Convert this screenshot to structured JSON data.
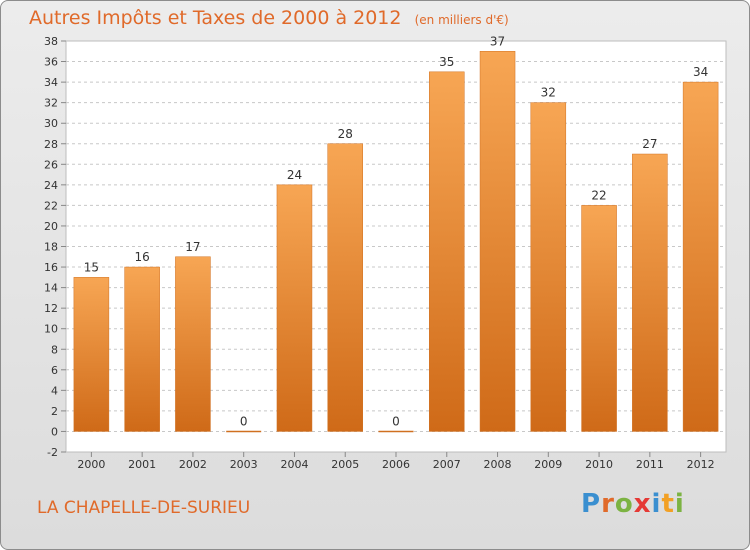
{
  "header": {
    "title": "Autres Impôts et Taxes de 2000 à 2012",
    "unit": "(en milliers d'€)"
  },
  "footer": {
    "commune": "LA CHAPELLE-DE-SURIEU",
    "brand_letters": [
      "P",
      "r",
      "o",
      "x",
      "i",
      "t",
      "i"
    ],
    "brand_colors": [
      "#3a8fd0",
      "#e06a2a",
      "#7cb342",
      "#e53935",
      "#3a8fd0",
      "#f2a024",
      "#7cb342"
    ]
  },
  "colors": {
    "bar_top": "#f7a654",
    "bar_bottom": "#cf6a18",
    "text": "#333333",
    "title": "#e06a2a"
  },
  "chart_data": {
    "type": "bar",
    "categories": [
      "2000",
      "2001",
      "2002",
      "2003",
      "2004",
      "2005",
      "2006",
      "2007",
      "2008",
      "2009",
      "2010",
      "2011",
      "2012"
    ],
    "values": [
      15,
      16,
      17,
      0,
      24,
      28,
      0,
      35,
      37,
      32,
      22,
      27,
      34
    ],
    "data_labels": [
      "15",
      "16",
      "17",
      "0",
      "24",
      "28",
      "0",
      "35",
      "37",
      "32",
      "22",
      "27",
      "34"
    ],
    "ylim": [
      -2,
      38
    ],
    "yticks": [
      -2,
      0,
      2,
      4,
      6,
      8,
      10,
      12,
      14,
      16,
      18,
      20,
      22,
      24,
      26,
      28,
      30,
      32,
      34,
      36,
      38
    ],
    "grid": "horizontal dashed",
    "legend": "none"
  }
}
